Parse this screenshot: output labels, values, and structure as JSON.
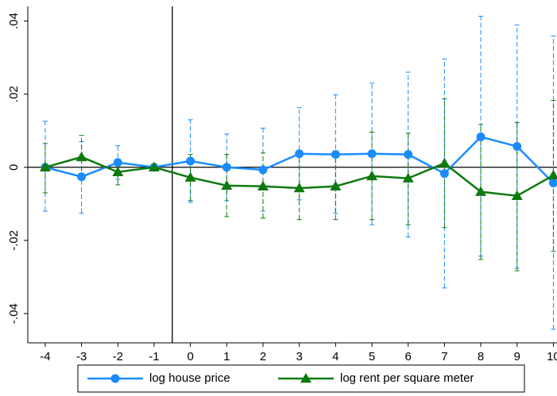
{
  "chart_data": {
    "type": "line",
    "x": [
      -4,
      -3,
      -2,
      -1,
      0,
      1,
      2,
      3,
      4,
      5,
      6,
      7,
      8,
      9,
      10
    ],
    "series": [
      {
        "name": "log house price",
        "color": "#1a8cff",
        "marker": "circle",
        "values": [
          0,
          -0.0026,
          0.0013,
          0,
          0.0017,
          0,
          -0.0007,
          0.0037,
          0.0035,
          0.0037,
          0.0035,
          -0.0017,
          0.0083,
          0.0057,
          -0.0043
        ],
        "ci_low": [
          -0.012,
          -0.0126,
          -0.0033,
          null,
          -0.0096,
          -0.0091,
          -0.012,
          -0.0089,
          -0.0126,
          -0.0157,
          -0.0191,
          -0.033,
          -0.0243,
          -0.0276,
          -0.0443
        ],
        "ci_high": [
          0.0126,
          0.007,
          0.0059,
          null,
          0.013,
          0.0091,
          0.0107,
          0.0163,
          0.0198,
          0.023,
          0.026,
          0.0296,
          0.0413,
          0.0389,
          0.0359
        ]
      },
      {
        "name": "log rent per square meter",
        "color": "#0e7a0e",
        "marker": "triangle",
        "values": [
          0,
          0.0028,
          -0.0013,
          0,
          -0.0028,
          -0.005,
          -0.0052,
          -0.0057,
          -0.0052,
          -0.0024,
          -0.003,
          0.0011,
          -0.0067,
          -0.0078,
          -0.0022
        ],
        "ci_low": [
          -0.007,
          -0.003,
          -0.0048,
          null,
          -0.0091,
          -0.0135,
          -0.0139,
          -0.0143,
          -0.0143,
          -0.0143,
          -0.0157,
          -0.0165,
          -0.0252,
          -0.0283,
          -0.023
        ],
        "ci_high": [
          0.0065,
          0.0087,
          0.0022,
          null,
          0.0035,
          0.0035,
          0.0039,
          0.003,
          0.0039,
          0.0096,
          0.0093,
          0.0187,
          0.0117,
          0.0122,
          0.0183
        ]
      }
    ],
    "xlim": [
      -4.48,
      10.1
    ],
    "ylim": [
      -0.048,
      0.044
    ],
    "xticks": [
      -4,
      -3,
      -2,
      -1,
      0,
      1,
      2,
      3,
      4,
      5,
      6,
      7,
      8,
      9,
      10
    ],
    "yticks": [
      {
        "value": -0.04,
        "label": "-.04"
      },
      {
        "value": -0.02,
        "label": "-.02"
      },
      0,
      {
        "value": 0.02,
        "label": ".02"
      },
      {
        "value": 0.04,
        "label": ".04"
      }
    ],
    "vline": -0.5,
    "hline": 0,
    "legend": "bottom"
  }
}
